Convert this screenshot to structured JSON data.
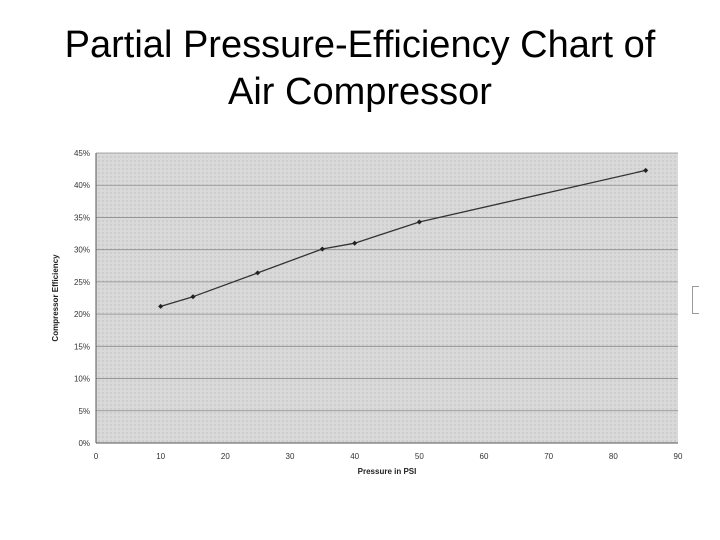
{
  "slide": {
    "title_line1": "Partial Pressure-Efficiency Chart of",
    "title_line2": "Air Compressor"
  },
  "chart_data": {
    "type": "line",
    "title": "",
    "xlabel": "Pressure in PSI",
    "ylabel": "Compressor Efficiency",
    "xlim": [
      0,
      90
    ],
    "ylim": [
      0,
      45
    ],
    "x_ticks": [
      0,
      10,
      20,
      30,
      40,
      50,
      60,
      70,
      80,
      90
    ],
    "y_ticks": [
      0,
      5,
      10,
      15,
      20,
      25,
      30,
      35,
      40,
      45
    ],
    "y_tick_labels": [
      "0%",
      "5%",
      "10%",
      "15%",
      "20%",
      "25%",
      "30%",
      "35%",
      "40%",
      "45%"
    ],
    "grid": true,
    "legend": "none",
    "series": [
      {
        "x": [
          10,
          15,
          25,
          35,
          40,
          50,
          85
        ],
        "y": [
          21.2,
          22.7,
          26.4,
          30.1,
          31.0,
          34.3,
          42.3
        ]
      }
    ],
    "colors": {
      "background": "#d9d9d9",
      "line": "#333333",
      "grid": "#8c8c8c"
    }
  }
}
